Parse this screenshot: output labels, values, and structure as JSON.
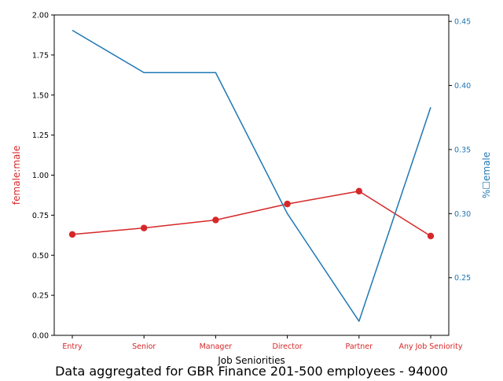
{
  "chart_data": {
    "type": "line",
    "caption": "Data aggregated for GBR Finance 201-500 employees - 94000",
    "xlabel": "Job Seniorities",
    "categories": [
      "Entry",
      "Senior",
      "Manager",
      "Director",
      "Partner",
      "Any Job Seniority"
    ],
    "left_axis": {
      "label": "female:male",
      "ylim": [
        0.0,
        2.0
      ],
      "ticks": [
        "0.00",
        "0.25",
        "0.50",
        "0.75",
        "1.00",
        "1.25",
        "1.50",
        "1.75",
        "2.00"
      ],
      "color": "#d62728"
    },
    "right_axis": {
      "label": "%☐emale",
      "ylim": [
        0.205,
        0.455
      ],
      "ticks": [
        "0.25",
        "0.30",
        "0.35",
        "0.40",
        "0.45"
      ],
      "color": "#1f77b4"
    },
    "series": [
      {
        "axis": "left",
        "color": "#d62728",
        "marker": "circle",
        "values": [
          0.63,
          0.67,
          0.72,
          0.82,
          0.9,
          0.62
        ]
      },
      {
        "axis": "right",
        "color": "#1f77b4",
        "marker": "none",
        "values": [
          0.443,
          0.41,
          0.41,
          0.3,
          0.216,
          0.383
        ]
      }
    ],
    "grid": false,
    "legend": "none"
  }
}
